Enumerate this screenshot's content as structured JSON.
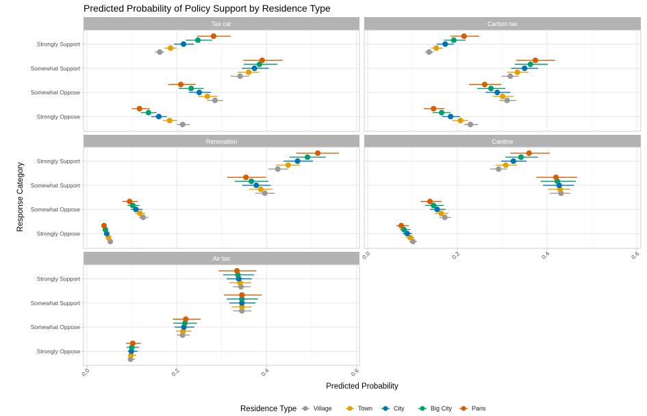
{
  "chart_data": {
    "type": "scatter",
    "subtype": "dot-and-whisker (point estimate with confidence interval), faceted",
    "title": "Predicted Probability of Policy Support by Residence Type",
    "xlabel": "Predicted Probability",
    "ylabel": "Response Category",
    "xlim": [
      0,
      0.6
    ],
    "x_ticks": [
      "0.0",
      "0.2",
      "0.4",
      "0.6"
    ],
    "grid": true,
    "categories": [
      "Strongly Support",
      "Somewhat Support",
      "Somewhat Oppose",
      "Strongly Oppose"
    ],
    "legend": {
      "title": "Residence Type",
      "placement": "bottom",
      "entries": [
        {
          "name": "Village",
          "color": "#999999"
        },
        {
          "name": "Town",
          "color": "#E69F00"
        },
        {
          "name": "City",
          "color": "#0072B2"
        },
        {
          "name": "Big City",
          "color": "#009E73"
        },
        {
          "name": "Paris",
          "color": "#D55E00"
        }
      ]
    },
    "series_order": [
      "Village",
      "Town",
      "City",
      "Big City",
      "Paris"
    ],
    "facets": [
      {
        "title": "Tax car",
        "data": {
          "Strongly Support": {
            "Village": {
              "est": 0.162,
              "lo": 0.151,
              "hi": 0.172
            },
            "Town": {
              "est": 0.186,
              "lo": 0.172,
              "hi": 0.2
            },
            "City": {
              "est": 0.215,
              "lo": 0.194,
              "hi": 0.238
            },
            "Big City": {
              "est": 0.247,
              "lo": 0.22,
              "hi": 0.279
            },
            "Paris": {
              "est": 0.282,
              "lo": 0.245,
              "hi": 0.32
            }
          },
          "Somewhat Support": {
            "Village": {
              "est": 0.341,
              "lo": 0.32,
              "hi": 0.361
            },
            "Town": {
              "est": 0.36,
              "lo": 0.335,
              "hi": 0.384
            },
            "City": {
              "est": 0.373,
              "lo": 0.345,
              "hi": 0.405
            },
            "Big City": {
              "est": 0.384,
              "lo": 0.349,
              "hi": 0.424
            },
            "Paris": {
              "est": 0.39,
              "lo": 0.348,
              "hi": 0.436
            }
          },
          "Somewhat Oppose": {
            "Village": {
              "est": 0.285,
              "lo": 0.268,
              "hi": 0.303
            },
            "Town": {
              "est": 0.268,
              "lo": 0.248,
              "hi": 0.291
            },
            "City": {
              "est": 0.25,
              "lo": 0.227,
              "hi": 0.276
            },
            "Big City": {
              "est": 0.232,
              "lo": 0.204,
              "hi": 0.26
            },
            "Paris": {
              "est": 0.209,
              "lo": 0.181,
              "hi": 0.242
            }
          },
          "Strongly Oppose": {
            "Village": {
              "est": 0.213,
              "lo": 0.2,
              "hi": 0.229
            },
            "Town": {
              "est": 0.184,
              "lo": 0.169,
              "hi": 0.201
            },
            "City": {
              "est": 0.16,
              "lo": 0.143,
              "hi": 0.178
            },
            "Big City": {
              "est": 0.137,
              "lo": 0.12,
              "hi": 0.155
            },
            "Paris": {
              "est": 0.117,
              "lo": 0.1,
              "hi": 0.14
            }
          }
        }
      },
      {
        "title": "Carbon tax",
        "data": {
          "Strongly Support": {
            "Village": {
              "est": 0.137,
              "lo": 0.128,
              "hi": 0.147
            },
            "Town": {
              "est": 0.153,
              "lo": 0.141,
              "hi": 0.168
            },
            "City": {
              "est": 0.173,
              "lo": 0.154,
              "hi": 0.192
            },
            "Big City": {
              "est": 0.192,
              "lo": 0.17,
              "hi": 0.218
            },
            "Paris": {
              "est": 0.215,
              "lo": 0.185,
              "hi": 0.249
            }
          },
          "Somewhat Support": {
            "Village": {
              "est": 0.318,
              "lo": 0.299,
              "hi": 0.337
            },
            "Town": {
              "est": 0.334,
              "lo": 0.311,
              "hi": 0.359
            },
            "City": {
              "est": 0.35,
              "lo": 0.32,
              "hi": 0.38
            },
            "Big City": {
              "est": 0.363,
              "lo": 0.328,
              "hi": 0.402
            },
            "Paris": {
              "est": 0.374,
              "lo": 0.331,
              "hi": 0.418
            }
          },
          "Somewhat Oppose": {
            "Village": {
              "est": 0.311,
              "lo": 0.293,
              "hi": 0.331
            },
            "Town": {
              "est": 0.301,
              "lo": 0.279,
              "hi": 0.325
            },
            "City": {
              "est": 0.289,
              "lo": 0.263,
              "hi": 0.318
            },
            "Big City": {
              "est": 0.275,
              "lo": 0.244,
              "hi": 0.307
            },
            "Paris": {
              "est": 0.261,
              "lo": 0.226,
              "hi": 0.298
            }
          },
          "Strongly Oppose": {
            "Village": {
              "est": 0.229,
              "lo": 0.215,
              "hi": 0.246
            },
            "Town": {
              "est": 0.207,
              "lo": 0.189,
              "hi": 0.224
            },
            "City": {
              "est": 0.185,
              "lo": 0.166,
              "hi": 0.206
            },
            "Big City": {
              "est": 0.165,
              "lo": 0.145,
              "hi": 0.185
            },
            "Paris": {
              "est": 0.147,
              "lo": 0.125,
              "hi": 0.171
            }
          }
        }
      },
      {
        "title": "Renovation",
        "data": {
          "Strongly Support": {
            "Village": {
              "est": 0.425,
              "lo": 0.404,
              "hi": 0.448
            },
            "Town": {
              "est": 0.448,
              "lo": 0.421,
              "hi": 0.474
            },
            "City": {
              "est": 0.469,
              "lo": 0.438,
              "hi": 0.503
            },
            "Big City": {
              "est": 0.491,
              "lo": 0.451,
              "hi": 0.532
            },
            "Paris": {
              "est": 0.514,
              "lo": 0.466,
              "hi": 0.561
            }
          },
          "Somewhat Support": {
            "Village": {
              "est": 0.396,
              "lo": 0.375,
              "hi": 0.418
            },
            "Town": {
              "est": 0.387,
              "lo": 0.361,
              "hi": 0.413
            },
            "City": {
              "est": 0.377,
              "lo": 0.346,
              "hi": 0.409
            },
            "Big City": {
              "est": 0.366,
              "lo": 0.329,
              "hi": 0.404
            },
            "Paris": {
              "est": 0.354,
              "lo": 0.312,
              "hi": 0.399
            }
          },
          "Somewhat Oppose": {
            "Village": {
              "est": 0.125,
              "lo": 0.116,
              "hi": 0.137
            },
            "Town": {
              "est": 0.118,
              "lo": 0.107,
              "hi": 0.13
            },
            "City": {
              "est": 0.109,
              "lo": 0.098,
              "hi": 0.124
            },
            "Big City": {
              "est": 0.102,
              "lo": 0.09,
              "hi": 0.117
            },
            "Paris": {
              "est": 0.095,
              "lo": 0.079,
              "hi": 0.113
            }
          },
          "Strongly Oppose": {
            "Village": {
              "est": 0.052,
              "lo": 0.048,
              "hi": 0.056
            },
            "Town": {
              "est": 0.048,
              "lo": 0.044,
              "hi": 0.052
            },
            "City": {
              "est": 0.044,
              "lo": 0.04,
              "hi": 0.048
            },
            "Big City": {
              "est": 0.041,
              "lo": 0.037,
              "hi": 0.045
            },
            "Paris": {
              "est": 0.038,
              "lo": 0.033,
              "hi": 0.043
            }
          }
        }
      },
      {
        "title": "Cantine",
        "data": {
          "Strongly Support": {
            "Village": {
              "est": 0.292,
              "lo": 0.273,
              "hi": 0.311
            },
            "Town": {
              "est": 0.308,
              "lo": 0.285,
              "hi": 0.333
            },
            "City": {
              "est": 0.325,
              "lo": 0.298,
              "hi": 0.354
            },
            "Big City": {
              "est": 0.342,
              "lo": 0.307,
              "hi": 0.38
            },
            "Paris": {
              "est": 0.36,
              "lo": 0.318,
              "hi": 0.406
            }
          },
          "Somewhat Support": {
            "Village": {
              "est": 0.431,
              "lo": 0.406,
              "hi": 0.452
            },
            "Town": {
              "est": 0.429,
              "lo": 0.403,
              "hi": 0.452
            },
            "City": {
              "est": 0.427,
              "lo": 0.391,
              "hi": 0.46
            },
            "Big City": {
              "est": 0.423,
              "lo": 0.386,
              "hi": 0.464
            },
            "Paris": {
              "est": 0.42,
              "lo": 0.376,
              "hi": 0.467
            }
          },
          "Somewhat Oppose": {
            "Village": {
              "est": 0.172,
              "lo": 0.16,
              "hi": 0.186
            },
            "Town": {
              "est": 0.164,
              "lo": 0.15,
              "hi": 0.18
            },
            "City": {
              "est": 0.155,
              "lo": 0.139,
              "hi": 0.174
            },
            "Big City": {
              "est": 0.147,
              "lo": 0.128,
              "hi": 0.17
            },
            "Paris": {
              "est": 0.139,
              "lo": 0.118,
              "hi": 0.165
            }
          },
          "Strongly Oppose": {
            "Village": {
              "est": 0.101,
              "lo": 0.093,
              "hi": 0.11
            },
            "Town": {
              "est": 0.095,
              "lo": 0.085,
              "hi": 0.104
            },
            "City": {
              "est": 0.088,
              "lo": 0.078,
              "hi": 0.099
            },
            "Big City": {
              "est": 0.081,
              "lo": 0.072,
              "hi": 0.095
            },
            "Paris": {
              "est": 0.075,
              "lo": 0.064,
              "hi": 0.092
            }
          }
        }
      },
      {
        "title": "Air tax",
        "data": {
          "Strongly Support": {
            "Village": {
              "est": 0.343,
              "lo": 0.325,
              "hi": 0.364
            },
            "Town": {
              "est": 0.341,
              "lo": 0.317,
              "hi": 0.366
            },
            "City": {
              "est": 0.338,
              "lo": 0.311,
              "hi": 0.367
            },
            "Big City": {
              "est": 0.336,
              "lo": 0.303,
              "hi": 0.372
            },
            "Paris": {
              "est": 0.334,
              "lo": 0.293,
              "hi": 0.377
            }
          },
          "Somewhat Support": {
            "Village": {
              "est": 0.345,
              "lo": 0.326,
              "hi": 0.366
            },
            "Town": {
              "est": 0.345,
              "lo": 0.322,
              "hi": 0.367
            },
            "City": {
              "est": 0.345,
              "lo": 0.317,
              "hi": 0.375
            },
            "Big City": {
              "est": 0.345,
              "lo": 0.311,
              "hi": 0.381
            },
            "Paris": {
              "est": 0.345,
              "lo": 0.305,
              "hi": 0.389
            }
          },
          "Somewhat Oppose": {
            "Village": {
              "est": 0.213,
              "lo": 0.2,
              "hi": 0.229
            },
            "Town": {
              "est": 0.214,
              "lo": 0.198,
              "hi": 0.233
            },
            "City": {
              "est": 0.216,
              "lo": 0.195,
              "hi": 0.239
            },
            "Big City": {
              "est": 0.218,
              "lo": 0.192,
              "hi": 0.245
            },
            "Paris": {
              "est": 0.22,
              "lo": 0.191,
              "hi": 0.253
            }
          },
          "Strongly Oppose": {
            "Village": {
              "est": 0.097,
              "lo": 0.093,
              "hi": 0.107
            },
            "Town": {
              "est": 0.098,
              "lo": 0.093,
              "hi": 0.11
            },
            "City": {
              "est": 0.099,
              "lo": 0.091,
              "hi": 0.113
            },
            "Big City": {
              "est": 0.1,
              "lo": 0.088,
              "hi": 0.116
            },
            "Paris": {
              "est": 0.102,
              "lo": 0.087,
              "hi": 0.12
            }
          }
        }
      }
    ]
  }
}
